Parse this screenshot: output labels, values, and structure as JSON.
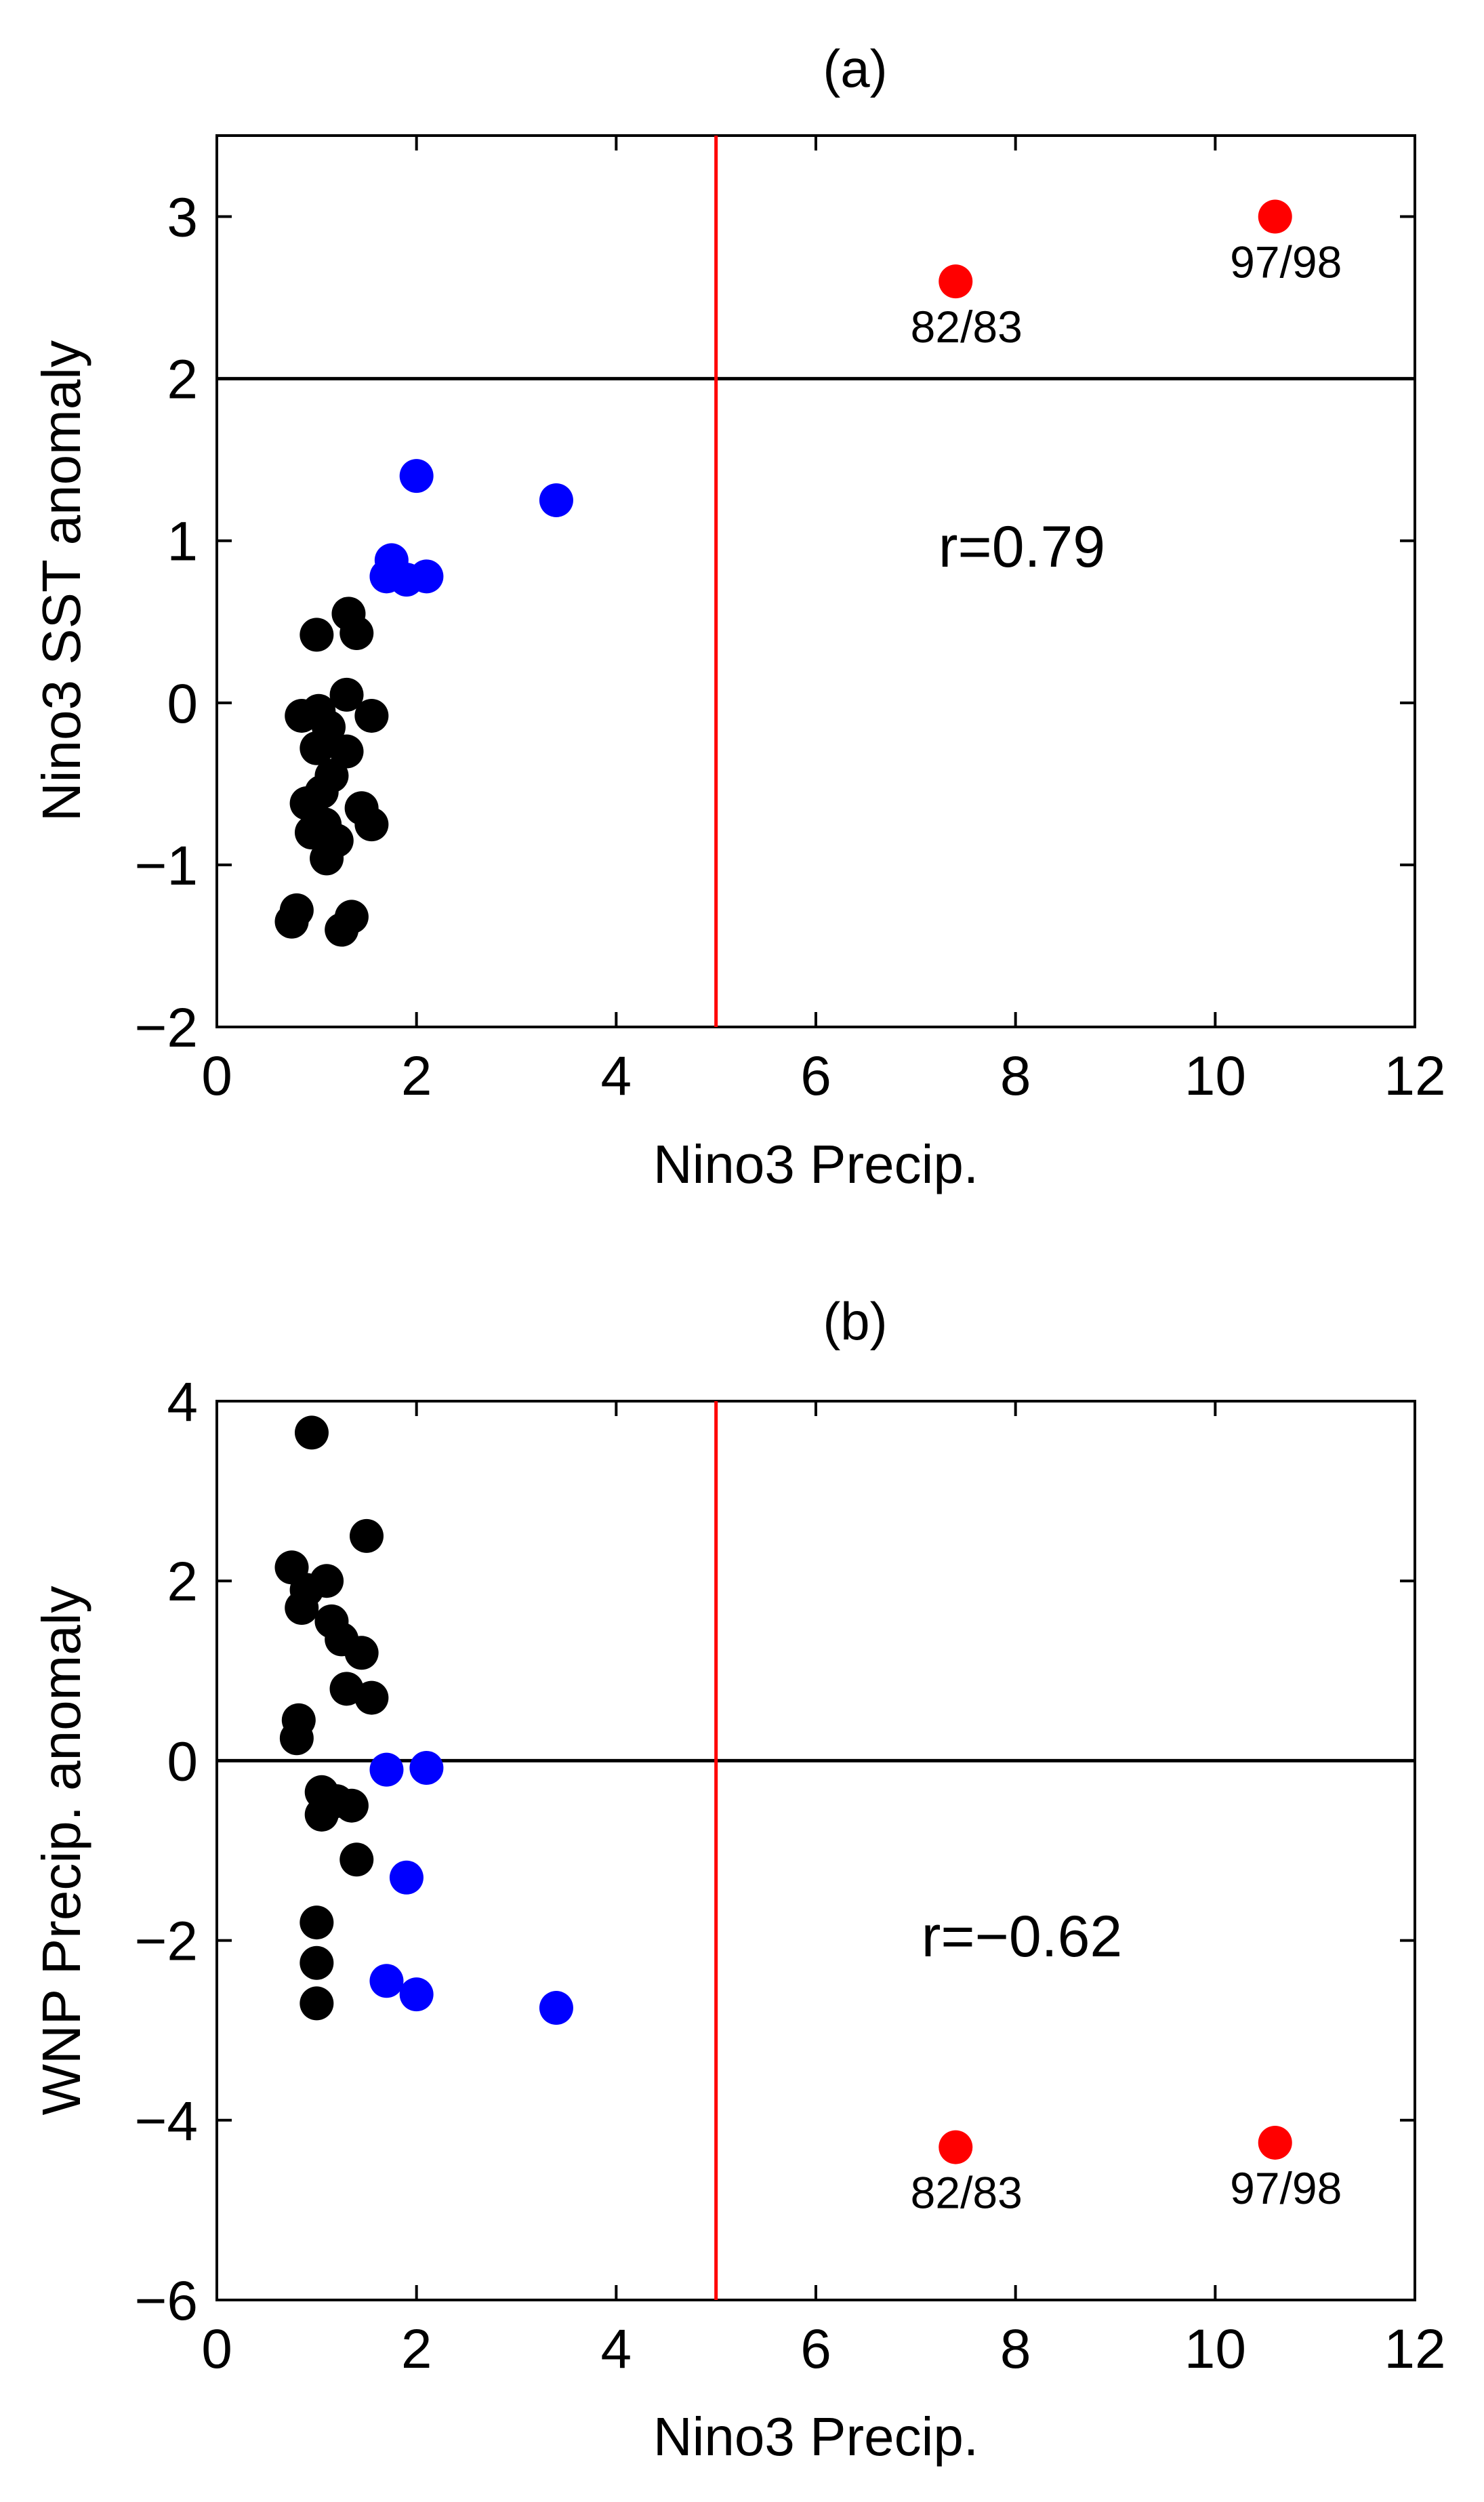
{
  "chart_data": [
    {
      "type": "scatter",
      "panel": "a",
      "title": "(a)",
      "xlabel": "Nino3 Precip.",
      "ylabel": "Nino3 SST anomaly",
      "xlim": [
        0,
        12
      ],
      "ylim": [
        -2,
        3.5
      ],
      "xticks": [
        0,
        2,
        4,
        6,
        8,
        10,
        12
      ],
      "yticks": [
        -2,
        -1,
        0,
        1,
        2,
        3
      ],
      "xtick_labels": [
        "0",
        "2",
        "4",
        "6",
        "8",
        "10",
        "12"
      ],
      "ytick_labels": [
        "−2",
        "−1",
        "0",
        "1",
        "2",
        "3"
      ],
      "hline": 2,
      "vline": 5,
      "correlation_text": "r=0.79",
      "series": [
        {
          "name": "black",
          "color": "#000000",
          "points": [
            [
              0.75,
              -1.35
            ],
            [
              0.8,
              -1.28
            ],
            [
              0.85,
              -0.08
            ],
            [
              0.9,
              -0.62
            ],
            [
              0.95,
              -0.8
            ],
            [
              1.0,
              0.42
            ],
            [
              1.0,
              -0.28
            ],
            [
              1.02,
              -0.05
            ],
            [
              1.05,
              -0.55
            ],
            [
              1.08,
              -0.75
            ],
            [
              1.1,
              -0.96
            ],
            [
              1.12,
              -0.15
            ],
            [
              1.15,
              -0.45
            ],
            [
              1.2,
              -0.85
            ],
            [
              1.25,
              -1.4
            ],
            [
              1.3,
              -0.3
            ],
            [
              1.3,
              0.05
            ],
            [
              1.32,
              0.55
            ],
            [
              1.35,
              -1.32
            ],
            [
              1.4,
              0.43
            ],
            [
              1.45,
              -0.65
            ],
            [
              1.55,
              -0.75
            ],
            [
              1.55,
              -0.08
            ]
          ]
        },
        {
          "name": "blue",
          "color": "#0000ff",
          "points": [
            [
              1.7,
              0.78
            ],
            [
              1.75,
              0.88
            ],
            [
              1.9,
              0.76
            ],
            [
              2.0,
              1.4
            ],
            [
              2.1,
              0.78
            ],
            [
              3.4,
              1.25
            ]
          ]
        },
        {
          "name": "red",
          "color": "#ff0000",
          "points": [
            [
              7.4,
              2.6
            ],
            [
              10.6,
              3.0
            ]
          ]
        }
      ],
      "annotations": [
        {
          "text": "82/83",
          "x": 7.4,
          "y": 2.6
        },
        {
          "text": "97/98",
          "x": 10.6,
          "y": 3.0
        }
      ]
    },
    {
      "type": "scatter",
      "panel": "b",
      "title": "(b)",
      "xlabel": "Nino3 Precip.",
      "ylabel": "WNP Precip. anomaly",
      "xlim": [
        0,
        12
      ],
      "ylim": [
        -6,
        4
      ],
      "xticks": [
        0,
        2,
        4,
        6,
        8,
        10,
        12
      ],
      "yticks": [
        -6,
        -4,
        -2,
        0,
        2,
        4
      ],
      "xtick_labels": [
        "0",
        "2",
        "4",
        "6",
        "8",
        "10",
        "12"
      ],
      "ytick_labels": [
        "−6",
        "−4",
        "−2",
        "0",
        "2",
        "4"
      ],
      "hline": 0,
      "vline": 5,
      "correlation_text": "r=−0.62",
      "series": [
        {
          "name": "black",
          "color": "#000000",
          "points": [
            [
              0.75,
              2.15
            ],
            [
              0.8,
              0.25
            ],
            [
              0.82,
              0.45
            ],
            [
              0.85,
              1.7
            ],
            [
              0.9,
              1.9
            ],
            [
              0.95,
              3.65
            ],
            [
              1.0,
              -1.8
            ],
            [
              1.0,
              -2.25
            ],
            [
              1.0,
              -2.7
            ],
            [
              1.05,
              -0.35
            ],
            [
              1.05,
              -0.6
            ],
            [
              1.1,
              2.0
            ],
            [
              1.15,
              1.55
            ],
            [
              1.2,
              -0.45
            ],
            [
              1.25,
              1.35
            ],
            [
              1.3,
              0.8
            ],
            [
              1.35,
              -0.5
            ],
            [
              1.4,
              -1.1
            ],
            [
              1.45,
              1.2
            ],
            [
              1.5,
              2.5
            ],
            [
              1.55,
              0.7
            ]
          ]
        },
        {
          "name": "blue",
          "color": "#0000ff",
          "points": [
            [
              1.7,
              -0.1
            ],
            [
              1.7,
              -2.45
            ],
            [
              1.9,
              -1.3
            ],
            [
              2.0,
              -2.6
            ],
            [
              2.1,
              -0.08
            ],
            [
              3.4,
              -2.75
            ]
          ]
        },
        {
          "name": "red",
          "color": "#ff0000",
          "points": [
            [
              7.4,
              -4.3
            ],
            [
              10.6,
              -4.25
            ]
          ]
        }
      ],
      "annotations": [
        {
          "text": "82/83",
          "x": 7.4,
          "y": -4.3
        },
        {
          "text": "97/98",
          "x": 10.6,
          "y": -4.25
        }
      ]
    }
  ]
}
